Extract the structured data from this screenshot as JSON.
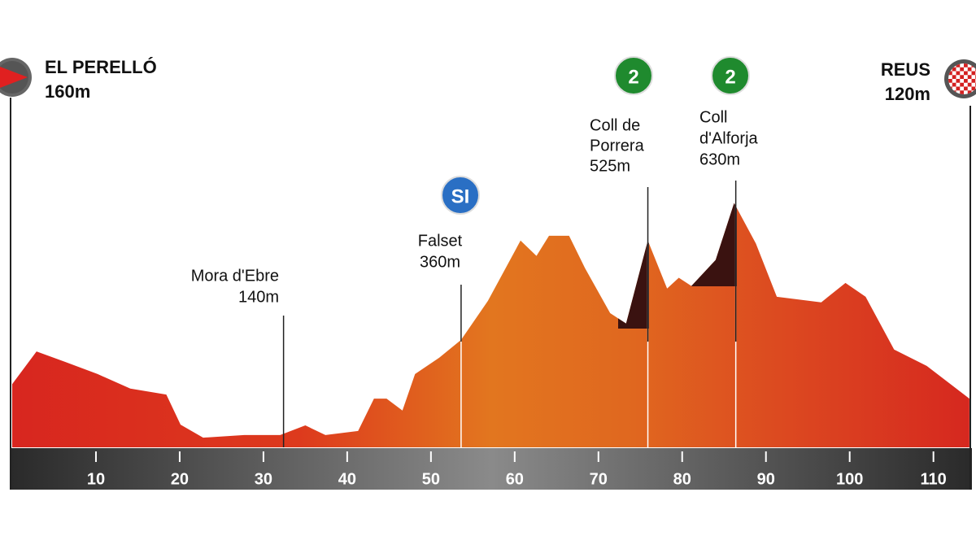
{
  "chart_data": {
    "type": "area",
    "start": {
      "name": "EL PERELLÓ",
      "elevation": "160m"
    },
    "finish": {
      "name": "REUS",
      "elevation": "120m"
    },
    "x": [
      0,
      2.9,
      6.3,
      10.2,
      14.1,
      18.4,
      20.1,
      22.8,
      27.7,
      32,
      35,
      37.4,
      41.3,
      43.2,
      44.7,
      46.6,
      48.1,
      51,
      53.6,
      56.8,
      60.7,
      62.6,
      64.1,
      66.5,
      68.4,
      71.4,
      73.3,
      75.9,
      78.2,
      79.6,
      81.1,
      84,
      86.2,
      88.8,
      91.3,
      96.6,
      99.5,
      101.9,
      105.3,
      109.2,
      114.3
    ],
    "values": [
      170,
      258,
      230,
      197,
      158,
      142,
      61,
      26,
      33,
      33,
      59,
      33,
      44,
      131,
      131,
      99,
      197,
      241,
      289,
      394,
      556,
      515,
      569,
      569,
      482,
      361,
      333,
      556,
      427,
      456,
      434,
      504,
      657,
      548,
      405,
      390,
      442,
      405,
      263,
      219,
      131
    ],
    "xlim": [
      0,
      114.5
    ],
    "xticks": [
      10,
      20,
      30,
      40,
      50,
      60,
      70,
      80,
      90,
      100,
      110
    ],
    "ylim": [
      0,
      700
    ],
    "markers": [
      {
        "lines": [
          "Mora d'Ebre",
          "140m"
        ],
        "km": 32.4
      },
      {
        "badge": "SI",
        "lines": [
          "Falset",
          "360m"
        ],
        "km": 53.6
      },
      {
        "badge": "2",
        "lines": [
          "Coll de",
          "Porrera",
          "525m"
        ],
        "km": 75.9
      },
      {
        "badge": "2",
        "lines": [
          "Coll",
          "d'Alforja",
          "630m"
        ],
        "km": 86.4
      }
    ]
  }
}
